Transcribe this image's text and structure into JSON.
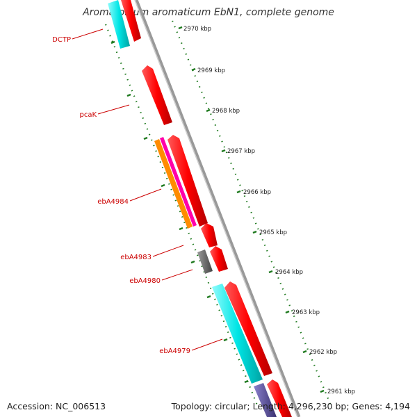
{
  "title": "Aromatoleum aromaticum EbN1, complete genome",
  "footer": {
    "accession": "Accession: NC_006513",
    "topology": "Topology: circular; Length: 4,296,230 bp; Genes: 4,194"
  },
  "gene_labels": [
    "DCTP",
    "pcaK",
    "ebA4984",
    "ebA4983",
    "ebA4980",
    "ebA4979"
  ],
  "kbp_labels": [
    "2970 kbp",
    "2969 kbp",
    "2968 kbp",
    "2967 kbp",
    "2966 kbp",
    "2965 kbp",
    "2964 kbp",
    "2963 kbp",
    "2962 kbp",
    "2961 kbp"
  ],
  "colors": {
    "forward_gene": "#ff0000",
    "reverse_gene_cyan": "#00e5e5",
    "reverse_gene_orange": "#ff8c00",
    "reverse_gene_magenta": "#ff00aa",
    "reverse_gene_gray": "#666666",
    "reverse_gene_purple": "#5a4fa0",
    "backbone": "#888888",
    "gc_ticks": "#1f7a1f",
    "label": "#cc0000"
  }
}
